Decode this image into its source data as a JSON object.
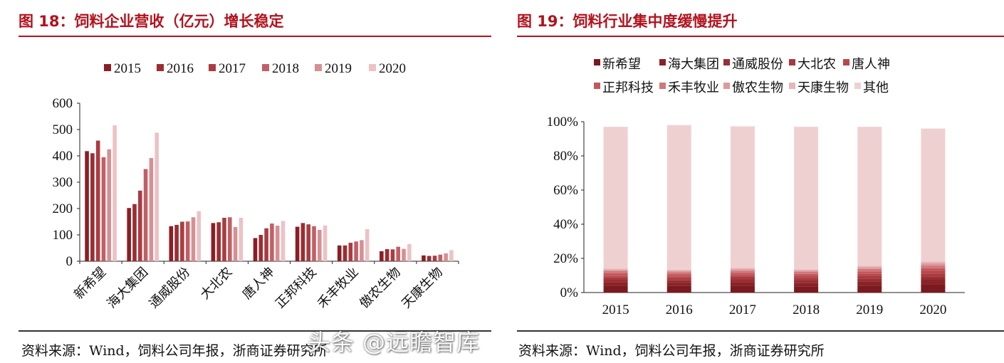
{
  "left": {
    "title": "图 18：饲料企业营收（亿元）增长稳定",
    "source": "资料来源：Wind，饲料公司年报，浙商证券研究所"
  },
  "right": {
    "title": "图 19：饲料行业集中度缓慢提升",
    "source": "资料来源：Wind，饲料公司年报，浙商证券研究所"
  },
  "watermark": "头条 @远瞻智库",
  "chart_data": [
    {
      "type": "bar",
      "title": "饲料企业营收（亿元）增长稳定",
      "categories": [
        "新希望",
        "海大集团",
        "通威股份",
        "大北农",
        "唐人神",
        "正邦科技",
        "禾丰牧业",
        "傲农生物",
        "天康生物"
      ],
      "series": [
        {
          "name": "2015",
          "color": "#8b1e24",
          "values": [
            418,
            202,
            133,
            145,
            88,
            131,
            60,
            38,
            22
          ]
        },
        {
          "name": "2016",
          "color": "#9a2e33",
          "values": [
            410,
            217,
            138,
            148,
            100,
            145,
            60,
            46,
            20
          ]
        },
        {
          "name": "2017",
          "color": "#aa3c41",
          "values": [
            458,
            268,
            150,
            165,
            125,
            140,
            70,
            45,
            21
          ]
        },
        {
          "name": "2018",
          "color": "#c06066",
          "values": [
            395,
            350,
            151,
            167,
            143,
            133,
            75,
            55,
            25
          ]
        },
        {
          "name": "2019",
          "color": "#d78f93",
          "values": [
            425,
            392,
            167,
            130,
            135,
            119,
            80,
            47,
            30
          ]
        },
        {
          "name": "2020",
          "color": "#ecc2c4",
          "values": [
            516,
            488,
            190,
            165,
            153,
            136,
            122,
            65,
            42
          ]
        }
      ],
      "ylim": [
        0,
        600
      ],
      "yticks": [
        0,
        100,
        200,
        300,
        400,
        500,
        600
      ],
      "legend_position": "top",
      "grid": false
    },
    {
      "type": "bar",
      "stacked": true,
      "title": "饲料行业集中度缓慢提升",
      "categories": [
        "2015",
        "2016",
        "2017",
        "2018",
        "2019",
        "2020"
      ],
      "series": [
        {
          "name": "新希望",
          "color": "#7a1a20",
          "values": [
            4.0,
            3.8,
            4.0,
            3.5,
            4.0,
            4.6
          ]
        },
        {
          "name": "海大集团",
          "color": "#8a2328",
          "values": [
            2.0,
            2.0,
            2.2,
            2.2,
            2.6,
            3.1
          ]
        },
        {
          "name": "通威股份",
          "color": "#992f33",
          "values": [
            1.5,
            1.4,
            1.5,
            1.4,
            1.6,
            1.8
          ]
        },
        {
          "name": "大北农",
          "color": "#a8393f",
          "values": [
            1.4,
            1.3,
            1.5,
            1.4,
            1.4,
            1.6
          ]
        },
        {
          "name": "唐人神",
          "color": "#b6484d",
          "values": [
            1.0,
            1.0,
            1.1,
            1.1,
            1.3,
            1.4
          ]
        },
        {
          "name": "正邦科技",
          "color": "#c3585d",
          "values": [
            1.4,
            1.3,
            1.3,
            1.3,
            1.5,
            1.7
          ]
        },
        {
          "name": "禾丰牧业",
          "color": "#d0777b",
          "values": [
            1.2,
            1.1,
            1.2,
            1.2,
            1.4,
            1.6
          ]
        },
        {
          "name": "傲农生物",
          "color": "#dc9a9d",
          "values": [
            0.8,
            0.8,
            0.9,
            0.9,
            1.1,
            1.3
          ]
        },
        {
          "name": "天康生物",
          "color": "#e6b7b9",
          "values": [
            0.7,
            0.6,
            0.7,
            0.6,
            0.8,
            1.0
          ]
        },
        {
          "name": "其他",
          "color": "#efd0d1",
          "values": [
            83.0,
            84.7,
            82.9,
            83.4,
            81.3,
            77.9
          ]
        }
      ],
      "ylim": [
        0,
        100
      ],
      "yticks": [
        "0%",
        "20%",
        "40%",
        "60%",
        "80%",
        "100%"
      ],
      "legend_position": "top",
      "grid": false
    }
  ]
}
